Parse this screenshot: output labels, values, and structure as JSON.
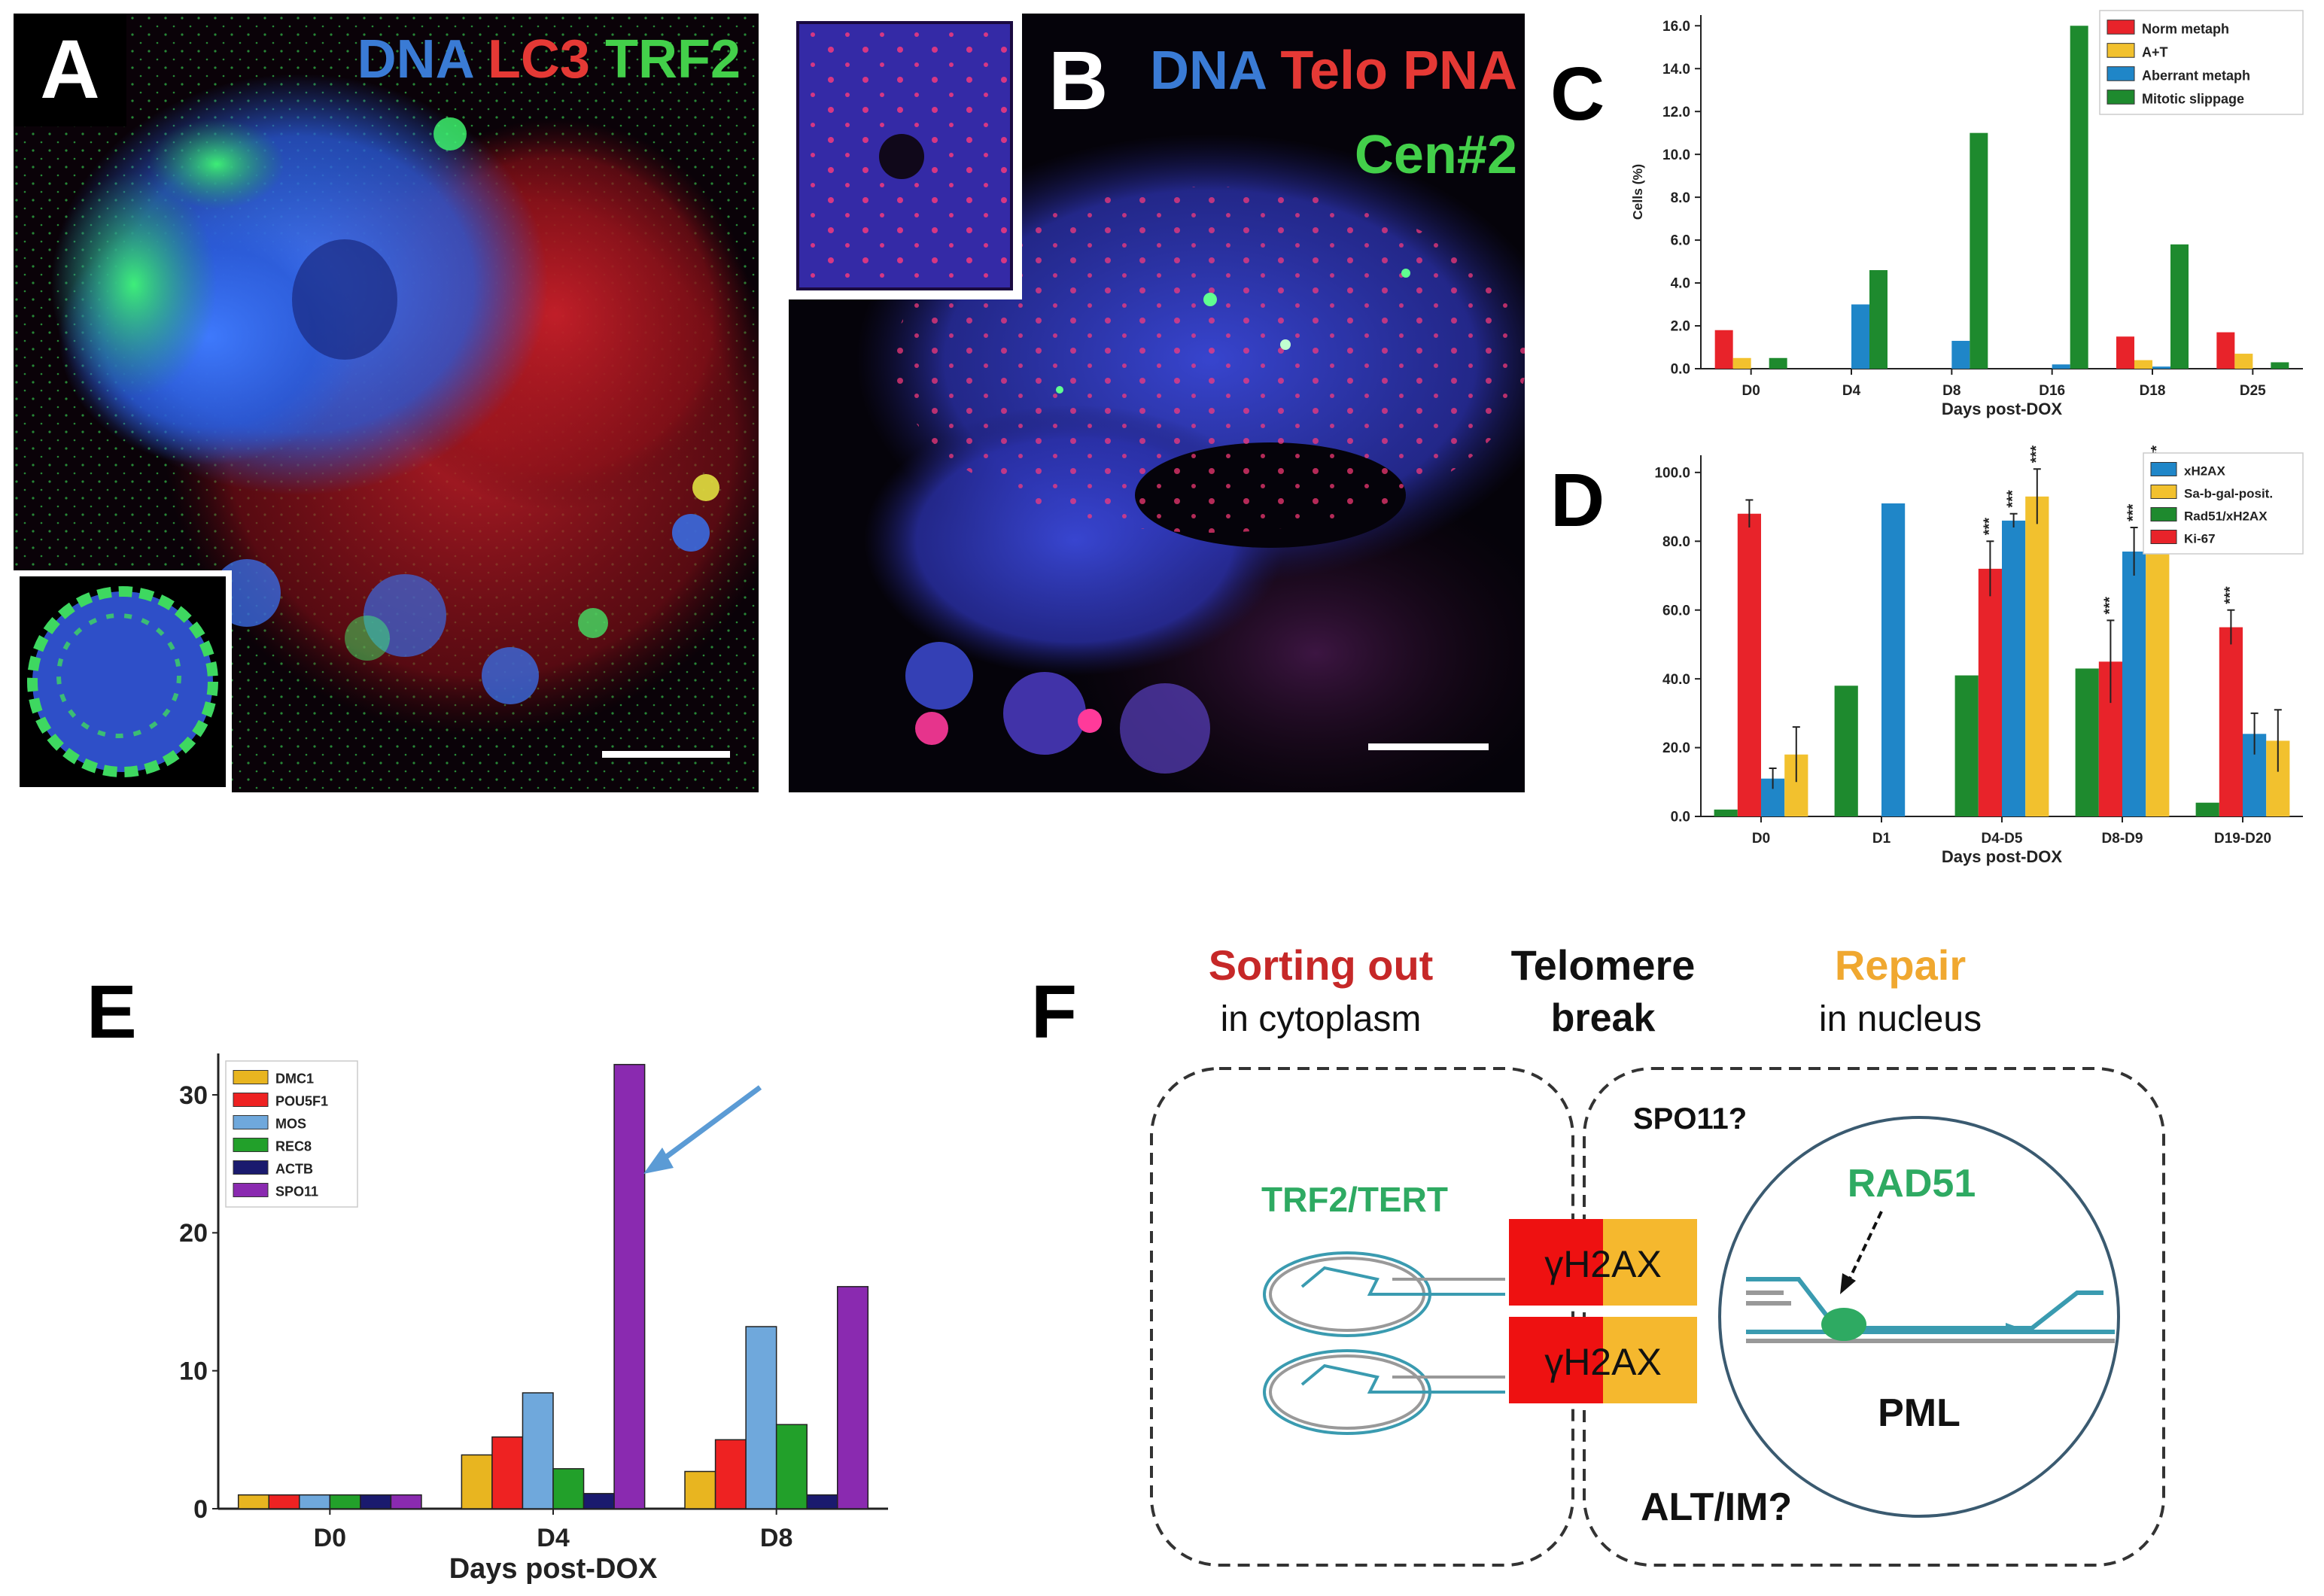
{
  "panel_a": {
    "letter": "A",
    "stain_dna": "DNA",
    "stain_lc3": "LC3",
    "stain_trf2": "TRF2",
    "colors": {
      "dna": "#3a7bd5",
      "lc3": "#e53935",
      "trf2": "#43d04a"
    }
  },
  "panel_b": {
    "letter": "B",
    "stain_dna": "DNA",
    "stain_telo": "Telo PNA",
    "stain_cen": "Cen#2",
    "colors": {
      "dna": "#3a7bd5",
      "telo": "#e53935",
      "cen": "#43d04a"
    }
  },
  "panel_c": {
    "letter": "C"
  },
  "panel_d": {
    "letter": "D"
  },
  "panel_e": {
    "letter": "E"
  },
  "panel_f": {
    "letter": "F",
    "heading_left_1": "Sorting  out",
    "heading_left_2": "in cytoplasm",
    "heading_mid_1": "Telomere",
    "heading_mid_2": "break",
    "heading_right_1": "Repair",
    "heading_right_2": "in nucleus",
    "spo11": "SPO11?",
    "trf2_tert": "TRF2/TERT",
    "yh2ax_1": "γH2AX",
    "yh2ax_2": "γH2AX",
    "rad51": "RAD51",
    "pml": "PML",
    "alt_im": "ALT/IM?",
    "colors": {
      "sorting": "#c62828",
      "repair": "#f0a830",
      "green": "#2eaa62",
      "yh2ax_red": "#ee1111",
      "yh2ax_yellow": "#f5b82e",
      "dna_strand": "#3a9bb0"
    }
  },
  "chart_data": [
    {
      "id": "C",
      "type": "bar",
      "categories": [
        "D0",
        "D4",
        "D8",
        "D16",
        "D18",
        "D25"
      ],
      "xlabel": "Days post-DOX",
      "ylabel": "Cells (%)",
      "ylim": [
        0,
        16.5
      ],
      "yticks": [
        "0.0",
        "2.0",
        "4.0",
        "6.0",
        "8.0",
        "10.0",
        "12.0",
        "14.0",
        "16.0"
      ],
      "legend_position": "top-right",
      "series": [
        {
          "name": "Norm metaph",
          "color": "#e8232a",
          "values": [
            1.8,
            0,
            0,
            0,
            1.5,
            1.7
          ]
        },
        {
          "name": "A+T",
          "color": "#f2c12e",
          "values": [
            0.5,
            0,
            0,
            0,
            0.4,
            0.7
          ]
        },
        {
          "name": "Aberrant metaph",
          "color": "#1f86c8",
          "values": [
            0,
            3.0,
            1.3,
            0.2,
            0.1,
            0
          ]
        },
        {
          "name": "Mitotic slippage",
          "color": "#1e8a2e",
          "values": [
            0.5,
            4.6,
            11.0,
            16.0,
            5.8,
            0.3
          ]
        }
      ]
    },
    {
      "id": "D",
      "type": "bar",
      "categories": [
        "D0",
        "D1",
        "D4-D5",
        "D8-D9",
        "D19-D20"
      ],
      "xlabel": "Days post-DOX",
      "ylabel": "",
      "ylim": [
        0,
        105
      ],
      "yticks": [
        "0.0",
        "20.0",
        "40.0",
        "60.0",
        "80.0",
        "100.0"
      ],
      "legend_position": "top-right",
      "significance": "***",
      "series": [
        {
          "name": "Rad51/xH2AX",
          "color": "#1e8a2e",
          "values": [
            2,
            38,
            41,
            43,
            4
          ],
          "errors": [
            0,
            0,
            0,
            0,
            0
          ],
          "stars": [
            false,
            false,
            false,
            false,
            false
          ]
        },
        {
          "name": "Ki-67",
          "color": "#e8232a",
          "values": [
            88,
            null,
            72,
            45,
            55
          ],
          "errors": [
            4,
            0,
            8,
            12,
            5
          ],
          "stars": [
            false,
            false,
            true,
            true,
            true
          ]
        },
        {
          "name": "xH2AX",
          "color": "#1f86c8",
          "values": [
            11,
            91,
            86,
            77,
            24
          ],
          "errors": [
            3,
            0,
            2,
            7,
            6
          ],
          "stars": [
            false,
            false,
            true,
            true,
            false
          ]
        },
        {
          "name": "Sa-b-gal-posit.",
          "color": "#f2c12e",
          "values": [
            18,
            null,
            93,
            92,
            22
          ],
          "errors": [
            8,
            0,
            8,
            9,
            9
          ],
          "stars": [
            false,
            false,
            true,
            true,
            false
          ]
        }
      ],
      "legend_order": [
        "xH2AX",
        "Sa-b-gal-posit.",
        "Rad51/xH2AX",
        "Ki-67"
      ]
    },
    {
      "id": "E",
      "type": "bar",
      "categories": [
        "D0",
        "D4",
        "D8"
      ],
      "xlabel": "Days post-DOX",
      "ylabel": "",
      "ylim": [
        0,
        33
      ],
      "yticks": [
        "0",
        "10",
        "20",
        "30"
      ],
      "legend_position": "top-left",
      "series": [
        {
          "name": "DMC1",
          "color": "#e8b520",
          "values": [
            1,
            3.9,
            2.7
          ]
        },
        {
          "name": "POU5F1",
          "color": "#ee2222",
          "values": [
            1,
            5.2,
            5.0
          ]
        },
        {
          "name": "MOS",
          "color": "#6fa8dc",
          "values": [
            1,
            8.4,
            13.2
          ]
        },
        {
          "name": "REC8",
          "color": "#22a02a",
          "values": [
            1,
            2.9,
            6.1
          ]
        },
        {
          "name": "ACTB",
          "color": "#1a1a6e",
          "values": [
            1,
            1.1,
            1.0
          ]
        },
        {
          "name": "SPO11",
          "color": "#8a2ab0",
          "values": [
            1,
            32.2,
            16.1
          ]
        }
      ]
    }
  ]
}
